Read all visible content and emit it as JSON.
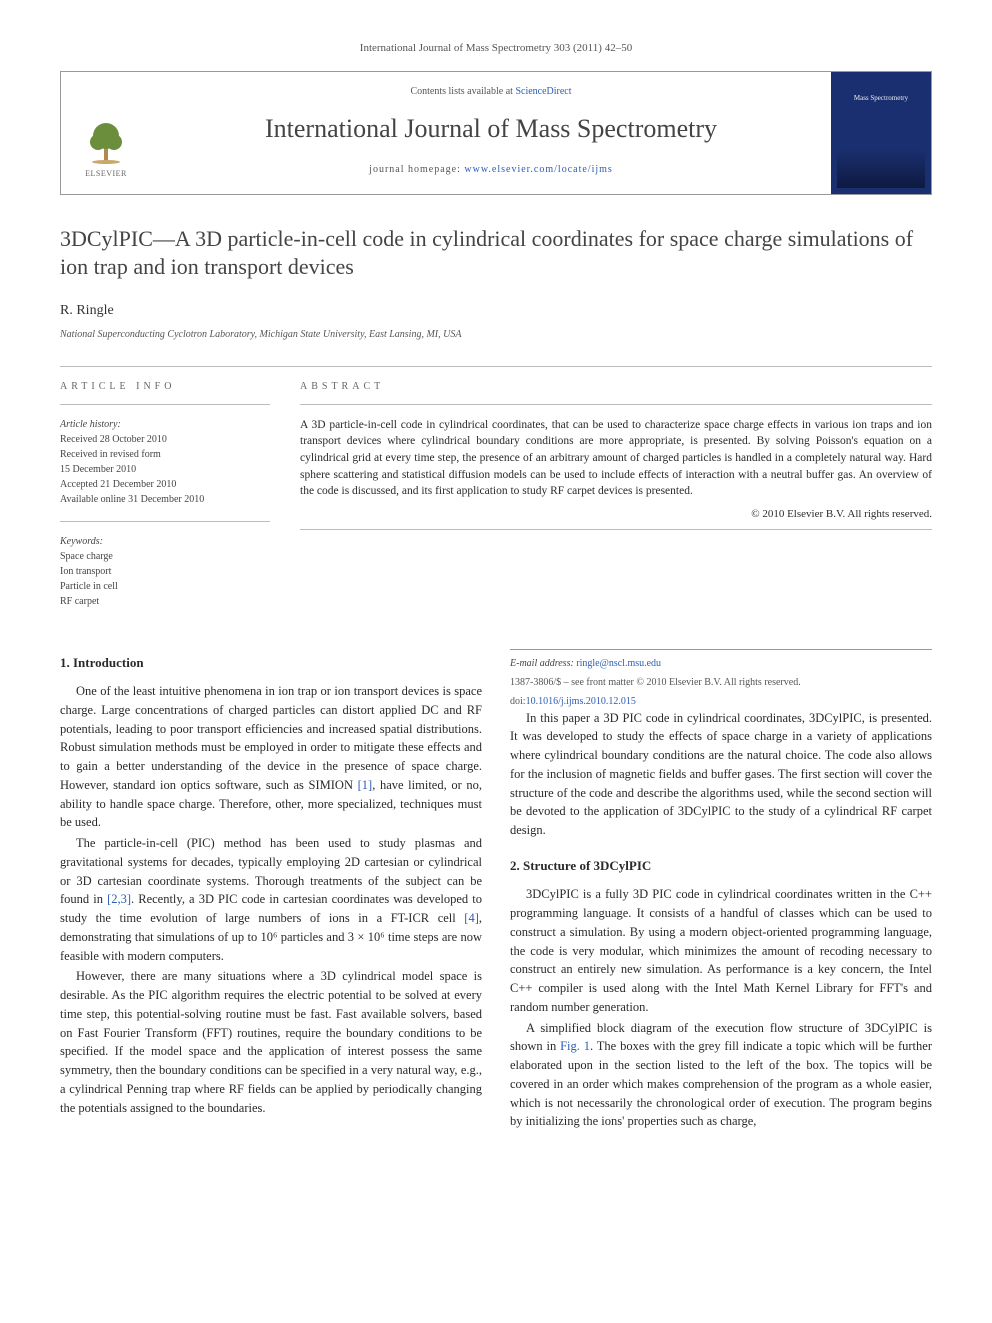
{
  "header_citation": "International Journal of Mass Spectrometry 303 (2011) 42–50",
  "journal_box": {
    "contents_prefix": "Contents lists available at ",
    "contents_link": "ScienceDirect",
    "journal_name": "International Journal of Mass Spectrometry",
    "homepage_prefix": "journal homepage: ",
    "homepage_url": "www.elsevier.com/locate/ijms",
    "publisher_label": "ELSEVIER",
    "cover_text_top": "Mass Spectrometry"
  },
  "title": "3DCylPIC—A 3D particle-in-cell code in cylindrical coordinates for space charge simulations of ion trap and ion transport devices",
  "author": "R. Ringle",
  "affiliation": "National Superconducting Cyclotron Laboratory, Michigan State University, East Lansing, MI, USA",
  "article_info": {
    "heading": "article info",
    "history_label": "Article history:",
    "history": [
      "Received 28 October 2010",
      "Received in revised form",
      "15 December 2010",
      "Accepted 21 December 2010",
      "Available online 31 December 2010"
    ],
    "keywords_label": "Keywords:",
    "keywords": [
      "Space charge",
      "Ion transport",
      "Particle in cell",
      "RF carpet"
    ]
  },
  "abstract": {
    "heading": "abstract",
    "text": "A 3D particle-in-cell code in cylindrical coordinates, that can be used to characterize space charge effects in various ion traps and ion transport devices where cylindrical boundary conditions are more appropriate, is presented. By solving Poisson's equation on a cylindrical grid at every time step, the presence of an arbitrary amount of charged particles is handled in a completely natural way. Hard sphere scattering and statistical diffusion models can be used to include effects of interaction with a neutral buffer gas. An overview of the code is discussed, and its first application to study RF carpet devices is presented.",
    "copyright": "© 2010 Elsevier B.V. All rights reserved."
  },
  "sections": {
    "intro_heading": "1.  Introduction",
    "intro_p1": "One of the least intuitive phenomena in ion trap or ion transport devices is space charge. Large concentrations of charged particles can distort applied DC and RF potentials, leading to poor transport efficiencies and increased spatial distributions. Robust simulation methods must be employed in order to mitigate these effects and to gain a better understanding of the device in the presence of space charge. However, standard ion optics software, such as SIMION [1], have limited, or no, ability to handle space charge. Therefore, other, more specialized, techniques must be used.",
    "intro_p2": "The particle-in-cell (PIC) method has been used to study plasmas and gravitational systems for decades, typically employing 2D cartesian or cylindrical or 3D cartesian coordinate systems. Thorough treatments of the subject can be found in [2,3]. Recently, a 3D PIC code in cartesian coordinates was developed to study the time evolution of large numbers of ions in a FT-ICR cell [4], demonstrating that simulations of up to 10⁶ particles and 3 × 10⁶ time steps are now feasible with modern computers.",
    "intro_p3": "However, there are many situations where a 3D cylindrical model space is desirable. As the PIC algorithm requires the electric potential to be solved at every time step, this potential-solving routine must be fast. Fast available solvers, based on Fast Fourier Transform (FFT) routines, require the boundary conditions to be specified. If the model space and the application of interest possess the same symmetry, then the boundary conditions can be specified in a very natural way, e.g., a cylindrical Penning trap where RF fields can be applied by periodically changing the potentials assigned to the boundaries.",
    "intro_p4": "In this paper a 3D PIC code in cylindrical coordinates, 3DCylPIC, is presented. It was developed to study the effects of space charge in a variety of applications where cylindrical boundary conditions are the natural choice. The code also allows for the inclusion of magnetic fields and buffer gases. The first section will cover the structure of the code and describe the algorithms used, while the second section will be devoted to the application of 3DCylPIC to the study of a cylindrical RF carpet design.",
    "struct_heading": "2.  Structure of 3DCylPIC",
    "struct_p1": "3DCylPIC is a fully 3D PIC code in cylindrical coordinates written in the C++ programming language. It consists of a handful of classes which can be used to construct a simulation. By using a modern object-oriented programming language, the code is very modular, which minimizes the amount of recoding necessary to construct an entirely new simulation. As performance is a key concern, the Intel C++ compiler is used along with the Intel Math Kernel Library for FFT's and random number generation.",
    "struct_p2": "A simplified block diagram of the execution flow structure of 3DCylPIC is shown in Fig. 1. The boxes with the grey fill indicate a topic which will be further elaborated upon in the section listed to the left of the box. The topics will be covered in an order which makes comprehension of the program as a whole easier, which is not necessarily the chronological order of execution. The program begins by initializing the ions' properties such as charge,"
  },
  "footnote": {
    "email_label": "E-mail address: ",
    "email": "ringle@nscl.msu.edu"
  },
  "footer": {
    "issn_line": "1387-3806/$ – see front matter © 2010 Elsevier B.V. All rights reserved.",
    "doi_label": "doi:",
    "doi": "10.1016/j.ijms.2010.12.015"
  },
  "colors": {
    "link": "#2c5db5",
    "rule": "#bbbbbb",
    "cover_bg": "#1a2f6f"
  }
}
